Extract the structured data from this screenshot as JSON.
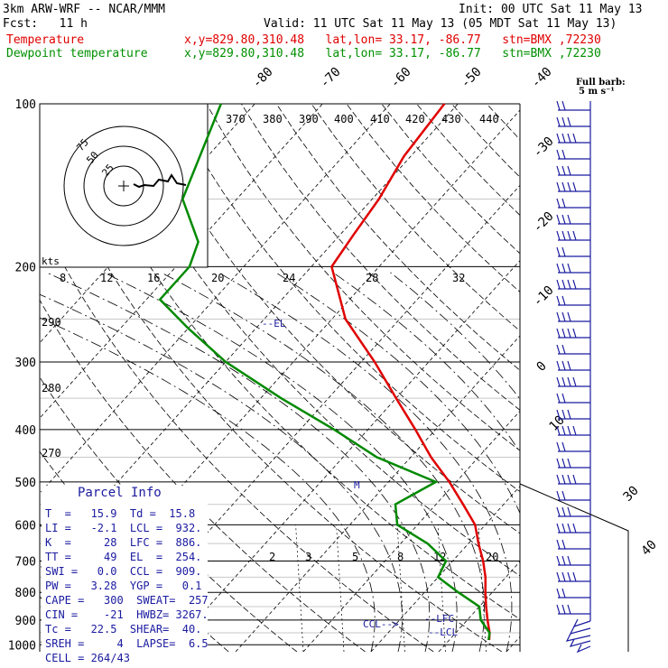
{
  "header": {
    "title": "3km ARW-WRF -- NCAR/MMM",
    "init": "Init: 00 UTC Sat 11 May 13",
    "fcst": "Fcst:   11 h",
    "valid": "Valid: 11 UTC Sat 11 May 13 (05 MDT Sat 11 May 13)",
    "temp_label": "Temperature",
    "temp_info": "x,y=829.80,310.48   lat,lon= 33.17, -86.77   stn=BMX ,72230",
    "dew_label": "Dewpoint temperature",
    "dew_info": "x,y=829.80,310.48   lat,lon= 33.17, -86.77   stn=BMX ,72230"
  },
  "colors": {
    "temperature": "#e00000",
    "dewpoint": "#008a00",
    "info_text": "#1a1aa0",
    "barbs": "#1a1aa0"
  },
  "chart_data": {
    "type": "line",
    "subtype": "skew-T log-P diagram",
    "pressure_levels": [
      "100",
      "200",
      "300",
      "400",
      "500",
      "600",
      "700",
      "800",
      "900",
      "1000"
    ],
    "isotherm_labels": [
      "-80",
      "-70",
      "-60",
      "-50",
      "-40",
      "-30",
      "-20",
      "-10",
      "0",
      "10",
      "30",
      "40"
    ],
    "theta_labels": [
      "370",
      "380",
      "390",
      "400",
      "410",
      "420",
      "430",
      "440",
      "290",
      "280",
      "270"
    ],
    "mixing_ratio_labels": [
      "2",
      "3",
      "5",
      "8",
      "12",
      "20"
    ],
    "wind_label": "Full barb:\n 5 m s⁻¹",
    "annotations": {
      "el": "--EL",
      "lfc": "--LFC",
      "lcl": "--LCL",
      "ccl": "CCL-->",
      "m": "M"
    },
    "series": [
      {
        "name": "Temperature",
        "points": [
          {
            "p": 100,
            "t": -62
          },
          {
            "p": 125,
            "t": -61
          },
          {
            "p": 150,
            "t": -59
          },
          {
            "p": 175,
            "t": -58
          },
          {
            "p": 200,
            "t": -57
          },
          {
            "p": 250,
            "t": -48
          },
          {
            "p": 300,
            "t": -38
          },
          {
            "p": 350,
            "t": -30
          },
          {
            "p": 400,
            "t": -23
          },
          {
            "p": 450,
            "t": -17
          },
          {
            "p": 500,
            "t": -11
          },
          {
            "p": 550,
            "t": -6
          },
          {
            "p": 600,
            "t": -1.5
          },
          {
            "p": 650,
            "t": 1.5
          },
          {
            "p": 700,
            "t": 4.5
          },
          {
            "p": 750,
            "t": 7
          },
          {
            "p": 800,
            "t": 9
          },
          {
            "p": 850,
            "t": 11
          },
          {
            "p": 900,
            "t": 13
          },
          {
            "p": 950,
            "t": 15
          },
          {
            "p": 980,
            "t": 15.9
          }
        ]
      },
      {
        "name": "Dewpoint temperature",
        "points": [
          {
            "p": 100,
            "t": -95
          },
          {
            "p": 150,
            "t": -88
          },
          {
            "p": 180,
            "t": -80
          },
          {
            "p": 200,
            "t": -78
          },
          {
            "p": 230,
            "t": -78
          },
          {
            "p": 260,
            "t": -70
          },
          {
            "p": 300,
            "t": -60
          },
          {
            "p": 350,
            "t": -47
          },
          {
            "p": 400,
            "t": -35
          },
          {
            "p": 450,
            "t": -25
          },
          {
            "p": 500,
            "t": -13
          },
          {
            "p": 550,
            "t": -16
          },
          {
            "p": 600,
            "t": -13
          },
          {
            "p": 650,
            "t": -6
          },
          {
            "p": 700,
            "t": -1
          },
          {
            "p": 750,
            "t": 0
          },
          {
            "p": 800,
            "t": 5
          },
          {
            "p": 850,
            "t": 10
          },
          {
            "p": 900,
            "t": 12
          },
          {
            "p": 950,
            "t": 15
          },
          {
            "p": 980,
            "t": 15.8
          }
        ]
      }
    ],
    "hodograph": {
      "ring_labels": [
        "75",
        "50",
        "25"
      ],
      "unit": "kts",
      "speed_labels": [
        "8",
        "12",
        "16",
        "20",
        "24",
        "28",
        "32"
      ]
    }
  },
  "parcel_info": {
    "title": "Parcel Info",
    "rows": [
      "T  =   15.9  Td =  15.8",
      "LI =   -2.1  LCL =  932.",
      "K  =     28  LFC =  886.",
      "TT =     49  EL  =  254.",
      "SWI =   0.0  CCL =  909.",
      "PW =   3.28  YGP =   0.1",
      "CAPE =   300  SWEAT=  257",
      "CIN =    -21  HWBZ= 3267.",
      "Tc =   22.5  SHEAR=  40.",
      "SREH =     4  LAPSE=  6.5",
      "CELL = 264/43"
    ]
  }
}
